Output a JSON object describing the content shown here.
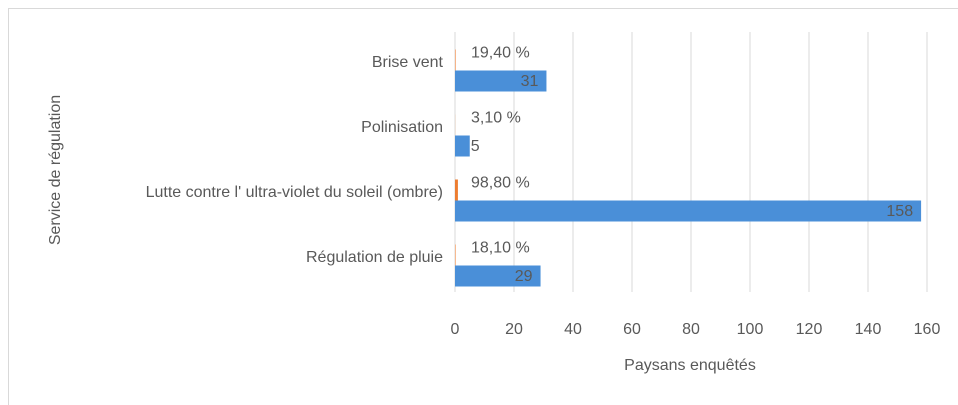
{
  "chart_data": {
    "type": "hbar",
    "y_axis_label": "Service de régulation",
    "x_axis_label": "Paysans enquêtés",
    "categories": [
      "Brise vent",
      "Polinisation",
      "Lutte contre l' ultra-violet du soleil (ombre)",
      "Régulation de pluie"
    ],
    "series": [
      {
        "color": "#ed7d31",
        "values": [
          0.194,
          0.031,
          0.988,
          0.181
        ],
        "value_labels": [
          "19,40 %",
          "3,10 %",
          "98,80 %",
          "18,10 %"
        ]
      },
      {
        "color": "#4a8fd8",
        "values": [
          31,
          5,
          158,
          29
        ]
      }
    ],
    "xlim": [
      0,
      160
    ],
    "xticks": [
      0,
      20,
      40,
      60,
      80,
      100,
      120,
      140,
      160
    ],
    "grid": true
  }
}
